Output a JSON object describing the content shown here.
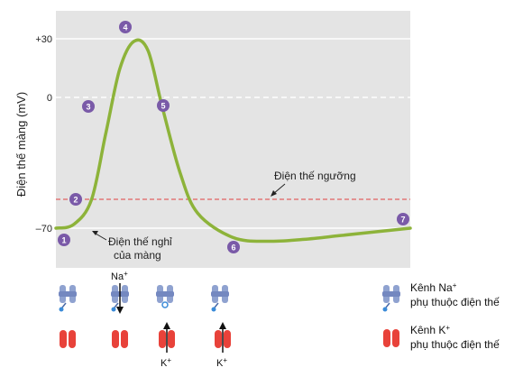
{
  "chart_data": {
    "type": "line",
    "ylabel": "Điện thế màng (mV)",
    "y_ticks": [
      "+30",
      "0",
      "–70"
    ],
    "threshold_label": "Điện thế ngưỡng",
    "resting_label_line1": "Điện thế nghỉ",
    "resting_label_line2": "của màng",
    "phase_markers": [
      "1",
      "2",
      "3",
      "4",
      "5",
      "6",
      "7"
    ],
    "curve": {
      "x": [
        0,
        5,
        10,
        14,
        18,
        22,
        26,
        30,
        35,
        40,
        50,
        60,
        70,
        80,
        90,
        100
      ],
      "y": [
        -70,
        -68,
        -55,
        -20,
        15,
        30,
        25,
        -5,
        -40,
        -62,
        -75,
        -77,
        -76,
        -74,
        -72,
        -70
      ]
    },
    "colors": {
      "curve": "#8db33a",
      "threshold_line": "#e06060",
      "panel": "#e4e4e4",
      "marker": "#7a5aa8",
      "na_channel": "#8fa2d0",
      "k_channel": "#e8423a"
    }
  },
  "channels": {
    "na_label": "Na",
    "k_label": "K",
    "plus": "+"
  },
  "legend": {
    "na_line1": "Kênh Na",
    "na_line2": "phụ thuộc điện thế",
    "k_line1": "Kênh K",
    "k_line2": "phụ thuộc điện thế"
  },
  "icons": {
    "na": "voltage-gated-sodium-channel-icon",
    "k": "voltage-gated-potassium-channel-icon"
  }
}
